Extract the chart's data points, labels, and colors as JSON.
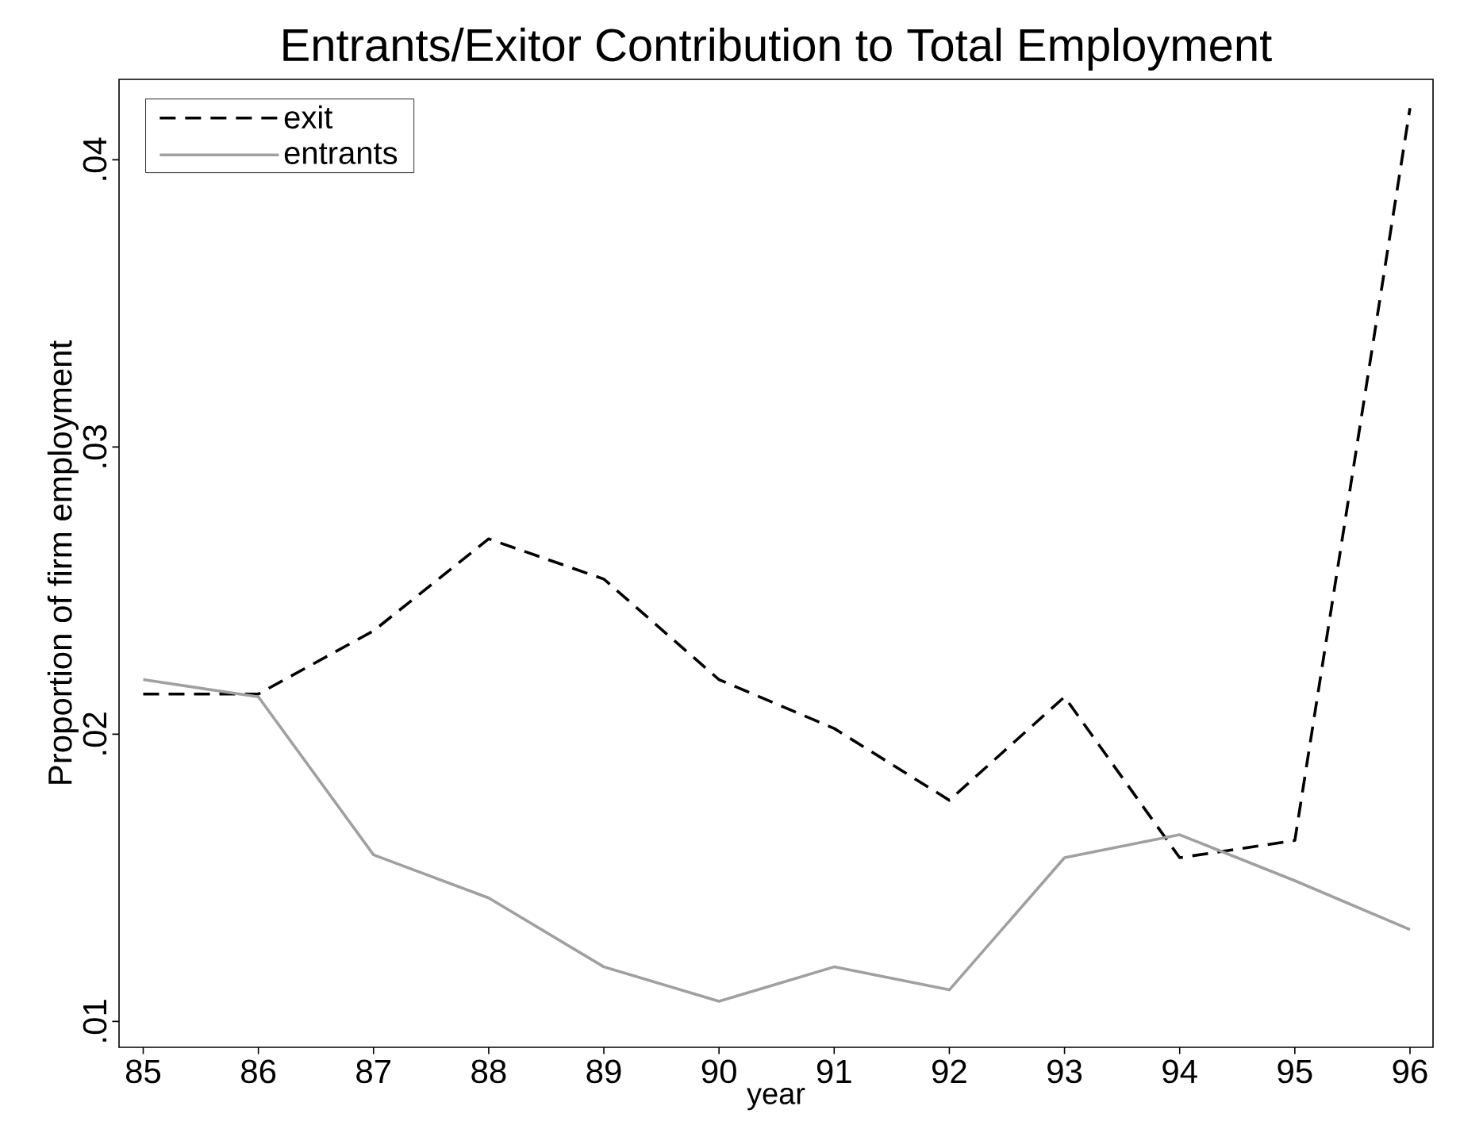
{
  "chart_data": {
    "type": "line",
    "title": "Entrants/Exitor Contribution to Total Employment",
    "xlabel": "year",
    "ylabel": "Proportion of firm employment",
    "x": [
      85,
      86,
      87,
      88,
      89,
      90,
      91,
      92,
      93,
      94,
      95,
      96
    ],
    "series": [
      {
        "name": "exit",
        "color": "#000000",
        "line_style": "dashed",
        "values": [
          0.0214,
          0.0214,
          0.0236,
          0.0268,
          0.0254,
          0.0219,
          0.0202,
          0.0177,
          0.0213,
          0.0157,
          0.0163,
          0.0418
        ]
      },
      {
        "name": "entrants",
        "color": "#a0a0a0",
        "line_style": "solid",
        "values": [
          0.0219,
          0.0213,
          0.0158,
          0.0143,
          0.0119,
          0.0107,
          0.0119,
          0.0111,
          0.0157,
          0.0165,
          0.0149,
          0.0132
        ]
      }
    ],
    "xlim": [
      84.79,
      96.2
    ],
    "ylim": [
      0.0091,
      0.0428
    ],
    "xticks": [
      85,
      86,
      87,
      88,
      89,
      90,
      91,
      92,
      93,
      94,
      95,
      96
    ],
    "yticks": [
      {
        "value": 0.01,
        "label": ".01"
      },
      {
        "value": 0.02,
        "label": ".02"
      },
      {
        "value": 0.03,
        "label": ".03"
      },
      {
        "value": 0.04,
        "label": ".04"
      }
    ],
    "grid": false,
    "legend": "top left",
    "marker": "none"
  }
}
